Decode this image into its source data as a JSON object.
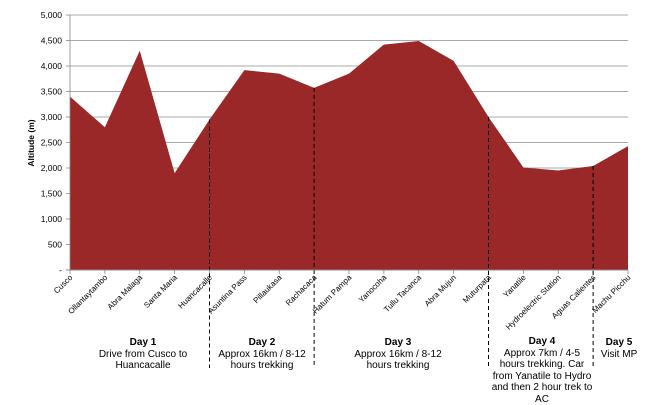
{
  "chart_data": {
    "type": "area",
    "title": "",
    "xlabel": "",
    "ylabel": "Altitude (m)",
    "ylim": [
      0,
      5000
    ],
    "yticks": [
      0,
      500,
      1000,
      1500,
      2000,
      2500,
      3000,
      3500,
      4000,
      4500,
      5000
    ],
    "ytick_labels": [
      "-",
      "500",
      "1,000",
      "1,500",
      "2,000",
      "2,500",
      "3,000",
      "3,500",
      "4,000",
      "4,500",
      "5,000"
    ],
    "categories": [
      "Cusco",
      "Ollantaytambo",
      "Abra Malaga",
      "Santa Maria",
      "Huancacalle",
      "Asuntina Pass",
      "Pillaukasa",
      "Rachacaca",
      "Hatum Pampa",
      "Yanocoha",
      "Tullu Tacanca",
      "Abra Mujun",
      "Muturpata",
      "Yanatile",
      "Hydroelectric Station",
      "Aguas Calientes",
      "Machu Picchu"
    ],
    "values": [
      3400,
      2800,
      4300,
      1900,
      2950,
      3920,
      3850,
      3570,
      3850,
      4420,
      4490,
      4100,
      3000,
      2010,
      1950,
      2040,
      2430
    ],
    "fill_color": "#9b2828",
    "grid": true,
    "day_dividers_after_index": [
      4,
      7,
      12,
      15
    ]
  },
  "days": [
    {
      "title": "Day 1",
      "description": "Drive from Cusco to\nHuancacalle"
    },
    {
      "title": "Day 2",
      "description": "Approx 16km / 8-12\nhours trekking"
    },
    {
      "title": "Day 3",
      "description": "Approx 16km / 8-12\nhours trekking"
    },
    {
      "title": "Day 4",
      "description": "Approx 7km / 4-5\nhours trekking. Car\nfrom Yanatile to Hydro\nand then 2 hour trek to\nAC"
    },
    {
      "title": "Day 5",
      "description": "Visit MP"
    }
  ]
}
